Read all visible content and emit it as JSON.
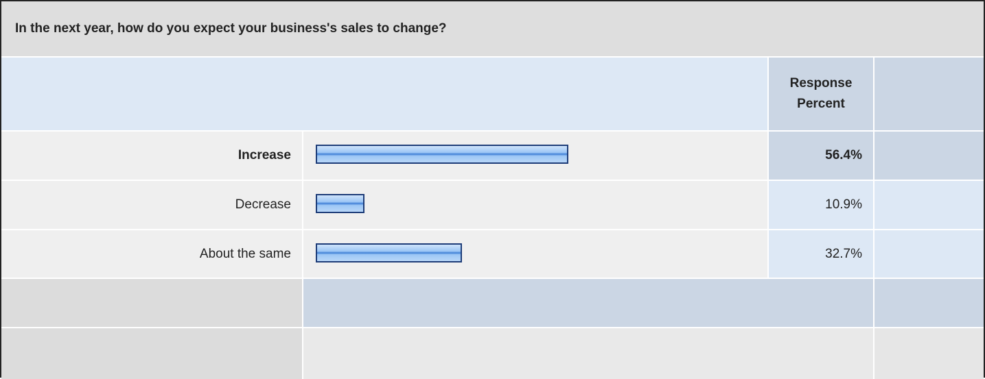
{
  "chart_data": {
    "type": "bar",
    "orientation": "horizontal",
    "title": "In the next year, how do you expect your business's sales to change?",
    "column_header": "Response Percent",
    "categories": [
      "Increase",
      "Decrease",
      "About the same"
    ],
    "values": [
      56.4,
      10.9,
      32.7
    ],
    "value_labels": [
      "56.4%",
      "10.9%",
      "32.7%"
    ],
    "xlim": [
      0,
      100
    ],
    "color": "#7fb2ee"
  }
}
